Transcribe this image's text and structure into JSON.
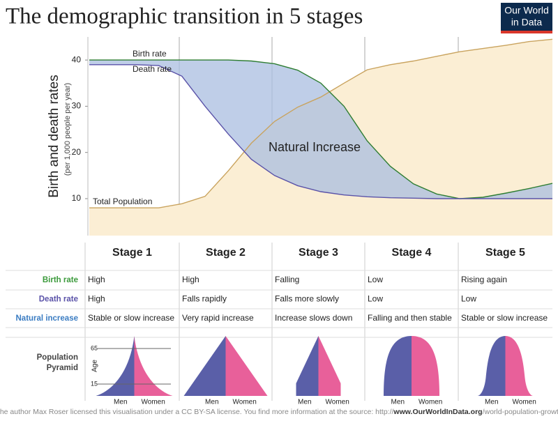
{
  "chart_data": {
    "type": "line",
    "title": "The demographic transition in 5 stages",
    "y_label": "Birth and death rates",
    "y_sublabel": "(per 1,000 people per year)",
    "annotations": [
      "Natural Increase"
    ],
    "categories": [
      null,
      null,
      null,
      null,
      null,
      null,
      null,
      null,
      null,
      null,
      null,
      null,
      null,
      null,
      null,
      null,
      null,
      null,
      null,
      null,
      null
    ],
    "series": [
      {
        "name": "Total Population",
        "color": "#c9a35e",
        "fill": "#fbeed4",
        "values": [
          8,
          8,
          8,
          8,
          8.9,
          10.5,
          16,
          22,
          26.7,
          29.8,
          32,
          35,
          37.9,
          39,
          39.8,
          40.8,
          41.8,
          42.5,
          43.2,
          44,
          44.5
        ]
      },
      {
        "name": "Birth rate",
        "color": "#2e7d32",
        "values": [
          40,
          40,
          40,
          40,
          40,
          40,
          40,
          39.8,
          39.2,
          37.8,
          35,
          30,
          22.5,
          17,
          13.2,
          11,
          10,
          10.3,
          11.2,
          12.2,
          13.3
        ]
      },
      {
        "name": "Death rate",
        "color": "#5a52a8",
        "values": [
          39,
          39,
          39,
          38.8,
          36.5,
          30,
          24,
          18.5,
          15,
          12.8,
          11.5,
          10.8,
          10.4,
          10.2,
          10.1,
          10,
          10,
          10,
          10,
          10,
          10
        ]
      }
    ],
    "ylim": [
      2,
      45
    ],
    "yticks": [
      10,
      20,
      30,
      40
    ],
    "increase_fill": "#a9bde0"
  },
  "logo": [
    "Our World",
    "in Data"
  ],
  "table": {
    "columns": [
      "Stage 1",
      "Stage 2",
      "Stage 3",
      "Stage 4",
      "Stage 5"
    ],
    "rows": [
      {
        "label": "Birth rate",
        "color": "#3b9a3b",
        "cells": [
          "High",
          "High",
          "Falling",
          "Low",
          "Rising again"
        ]
      },
      {
        "label": "Death rate",
        "color": "#5a52a8",
        "cells": [
          "High",
          "Falls rapidly",
          "Falls more slowly",
          "Low",
          "Low"
        ]
      },
      {
        "label": "Natural increase",
        "color": "#3a7cc2",
        "cells": [
          "Stable or slow increase",
          "Very rapid increase",
          "Increase slows down",
          "Falling and then stable",
          "Stable or slow increase"
        ]
      }
    ]
  },
  "pyramid": {
    "label": [
      "Population",
      "Pyramid"
    ],
    "men": "Men",
    "women": "Women",
    "age": "Age",
    "ages": [
      "65",
      "15"
    ]
  },
  "footer": [
    "The author Max Roser licensed this visualisation under a CC BY-SA license. You find more information at the source: http://",
    "www.OurWorldInData.org",
    "/world-population-growth"
  ]
}
